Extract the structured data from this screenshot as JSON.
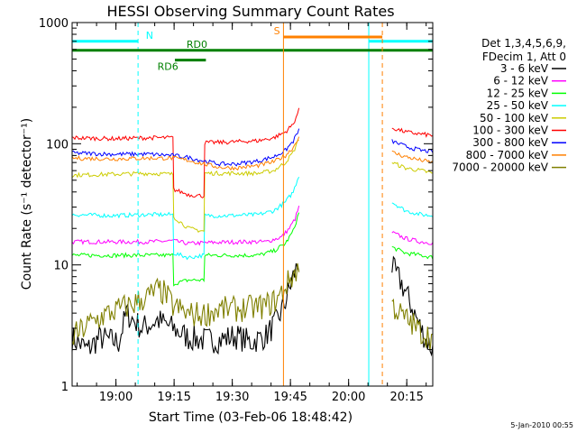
{
  "chart_data": {
    "type": "line",
    "title": "HESSI Observing Summary Count Rates",
    "xlabel": "Start Time (03-Feb-06 18:48:42)",
    "ylabel": "Count Rate (s⁻¹ detector⁻¹)",
    "xlim": [
      0,
      93
    ],
    "ylim": [
      1,
      1000
    ],
    "yscale": "log",
    "grid": false,
    "x_ticks": [
      {
        "label": "19:00",
        "value": 11.3
      },
      {
        "label": "19:15",
        "value": 26.3
      },
      {
        "label": "19:30",
        "value": 41.3
      },
      {
        "label": "19:45",
        "value": 56.3
      },
      {
        "label": "20:00",
        "value": 71.3
      },
      {
        "label": "20:15",
        "value": 86.3
      }
    ],
    "y_ticks": [
      {
        "label": "1",
        "value": 1
      },
      {
        "label": "10",
        "value": 10
      },
      {
        "label": "100",
        "value": 100
      },
      {
        "label": "1000",
        "value": 1000
      }
    ],
    "legend": {
      "placement": "right",
      "header": [
        "Det 1,3,4,5,6,9,",
        "FDecim 1, Att 0"
      ]
    },
    "series": [
      {
        "name": "3 - 6 keV",
        "color": "#000000",
        "points": [
          [
            0,
            2.5
          ],
          [
            4,
            2.0
          ],
          [
            7,
            2.5
          ],
          [
            12,
            2.3
          ],
          [
            14,
            4.0
          ],
          [
            18,
            3.0
          ],
          [
            22,
            3.5
          ],
          [
            26,
            3.0
          ],
          [
            30,
            2.5
          ],
          [
            34,
            2.4
          ],
          [
            38,
            2.4
          ],
          [
            42,
            2.6
          ],
          [
            46,
            2.3
          ],
          [
            50,
            2.6
          ],
          [
            53,
            3.5
          ],
          [
            55,
            5.0
          ],
          [
            57,
            8.0
          ],
          [
            58.5,
            10.5
          ],
          [
            null,
            null
          ],
          [
            82.5,
            9.5
          ],
          [
            85,
            7.0
          ],
          [
            87,
            5.0
          ],
          [
            89,
            3.5
          ],
          [
            91,
            2.5
          ],
          [
            93,
            2.0
          ]
        ]
      },
      {
        "name": "6 - 12 keV",
        "color": "#ff00ff",
        "points": [
          [
            0,
            15.5
          ],
          [
            10,
            15.5
          ],
          [
            20,
            15.5
          ],
          [
            26,
            15.8
          ],
          [
            30,
            15.0
          ],
          [
            36,
            15.3
          ],
          [
            44,
            15.5
          ],
          [
            50,
            15.5
          ],
          [
            54,
            17
          ],
          [
            56,
            20
          ],
          [
            57.5,
            24
          ],
          [
            58.5,
            30
          ],
          [
            null,
            null
          ],
          [
            82.5,
            18.5
          ],
          [
            86,
            16.5
          ],
          [
            90,
            15.5
          ],
          [
            93,
            15.2
          ]
        ]
      },
      {
        "name": "12 - 25 keV",
        "color": "#00ff00",
        "points": [
          [
            0,
            12.0
          ],
          [
            10,
            12.0
          ],
          [
            20,
            12.0
          ],
          [
            26,
            12.0
          ],
          [
            26.2,
            7.0
          ],
          [
            30,
            7.5
          ],
          [
            34,
            7.5
          ],
          [
            34.2,
            12.0
          ],
          [
            40,
            12.0
          ],
          [
            48,
            12.0
          ],
          [
            52,
            13
          ],
          [
            55,
            15
          ],
          [
            57,
            19
          ],
          [
            58.5,
            27
          ],
          [
            null,
            null
          ],
          [
            82.5,
            14
          ],
          [
            86,
            12.5
          ],
          [
            90,
            12.0
          ],
          [
            93,
            11.5
          ]
        ]
      },
      {
        "name": "25 - 50 keV",
        "color": "#00ffff",
        "points": [
          [
            0,
            26
          ],
          [
            10,
            25.5
          ],
          [
            20,
            26
          ],
          [
            26,
            26
          ],
          [
            26.2,
            12.5
          ],
          [
            30,
            11.5
          ],
          [
            34,
            12
          ],
          [
            34.2,
            25.5
          ],
          [
            40,
            25.5
          ],
          [
            48,
            26
          ],
          [
            52,
            28
          ],
          [
            55,
            33
          ],
          [
            57,
            40
          ],
          [
            58.5,
            55
          ],
          [
            null,
            null
          ],
          [
            82.5,
            33
          ],
          [
            86,
            28
          ],
          [
            90,
            26
          ],
          [
            93,
            25.5
          ]
        ]
      },
      {
        "name": "50 - 100 keV",
        "color": "#cccc00",
        "points": [
          [
            0,
            55
          ],
          [
            10,
            56
          ],
          [
            20,
            57
          ],
          [
            26,
            56
          ],
          [
            26.2,
            25
          ],
          [
            30,
            20
          ],
          [
            34,
            19
          ],
          [
            34.2,
            57
          ],
          [
            40,
            57
          ],
          [
            48,
            57
          ],
          [
            52,
            60
          ],
          [
            55,
            70
          ],
          [
            57,
            85
          ],
          [
            58.5,
            110
          ],
          [
            null,
            null
          ],
          [
            82.5,
            70
          ],
          [
            86,
            63
          ],
          [
            90,
            60
          ],
          [
            93,
            57
          ]
        ]
      },
      {
        "name": "100 - 300 keV",
        "color": "#ff0000",
        "points": [
          [
            0,
            112
          ],
          [
            10,
            110
          ],
          [
            20,
            112
          ],
          [
            26,
            112
          ],
          [
            26.2,
            42
          ],
          [
            30,
            38
          ],
          [
            34,
            37
          ],
          [
            34.2,
            102
          ],
          [
            40,
            103
          ],
          [
            48,
            106
          ],
          [
            52,
            112
          ],
          [
            55,
            125
          ],
          [
            57,
            145
          ],
          [
            58.5,
            190
          ],
          [
            null,
            null
          ],
          [
            82.5,
            135
          ],
          [
            86,
            125
          ],
          [
            90,
            120
          ],
          [
            93,
            117
          ]
        ]
      },
      {
        "name": "300 - 800 keV",
        "color": "#0000ff",
        "points": [
          [
            0,
            84
          ],
          [
            10,
            82
          ],
          [
            20,
            82
          ],
          [
            26,
            80
          ],
          [
            30,
            77
          ],
          [
            34,
            72
          ],
          [
            38,
            68
          ],
          [
            42,
            68
          ],
          [
            48,
            72
          ],
          [
            52,
            78
          ],
          [
            55,
            88
          ],
          [
            57,
            105
          ],
          [
            58.5,
            130
          ],
          [
            null,
            null
          ],
          [
            82.5,
            105
          ],
          [
            86,
            95
          ],
          [
            90,
            88
          ],
          [
            93,
            86
          ]
        ]
      },
      {
        "name": "800 - 7000 keV",
        "color": "#ff8000",
        "points": [
          [
            0,
            76
          ],
          [
            10,
            75
          ],
          [
            20,
            76
          ],
          [
            26,
            76
          ],
          [
            30,
            73
          ],
          [
            34,
            68
          ],
          [
            38,
            64
          ],
          [
            42,
            63
          ],
          [
            48,
            66
          ],
          [
            52,
            71
          ],
          [
            55,
            80
          ],
          [
            57,
            93
          ],
          [
            58.5,
            115
          ],
          [
            null,
            null
          ],
          [
            82.5,
            85
          ],
          [
            86,
            78
          ],
          [
            90,
            73
          ],
          [
            93,
            70
          ]
        ]
      },
      {
        "name": "7000 - 20000 keV",
        "color": "#808000",
        "points": [
          [
            0,
            2.5
          ],
          [
            4,
            3.2
          ],
          [
            8,
            3.8
          ],
          [
            12,
            4.3
          ],
          [
            16,
            4.8
          ],
          [
            20,
            5.6
          ],
          [
            22,
            6.2
          ],
          [
            24,
            5.8
          ],
          [
            26,
            4.6
          ],
          [
            30,
            3.9
          ],
          [
            34,
            3.9
          ],
          [
            38,
            4.3
          ],
          [
            42,
            4.3
          ],
          [
            46,
            4.4
          ],
          [
            50,
            4.6
          ],
          [
            53,
            5.2
          ],
          [
            55,
            6.6
          ],
          [
            57,
            8.3
          ],
          [
            58.5,
            9.5
          ],
          [
            null,
            null
          ],
          [
            82.5,
            4.7
          ],
          [
            85,
            3.8
          ],
          [
            88,
            3.2
          ],
          [
            90,
            2.8
          ],
          [
            93,
            2.5
          ]
        ]
      }
    ],
    "flags": [
      {
        "label": "N",
        "color": "#00ffff",
        "value": 700,
        "intervals": [
          [
            0,
            17
          ],
          [
            76.5,
            93
          ]
        ],
        "label_x": 19,
        "boundaries_solid": [
          0,
          76.5
        ],
        "boundaries_dashed": [
          17,
          93
        ]
      },
      {
        "label": "RD0",
        "color": "#008000",
        "value": 590,
        "intervals": [
          [
            0,
            93
          ]
        ],
        "label_x": 29.5
      },
      {
        "label": "RD6",
        "color": "#008000",
        "value": 490,
        "intervals": [
          [
            26.5,
            34.5
          ]
        ],
        "label_x": 22
      },
      {
        "label": "S",
        "color": "#ff8000",
        "value": 760,
        "intervals": [
          [
            54.5,
            80
          ]
        ],
        "label_x": 52,
        "boundaries_solid": [
          54.5
        ],
        "boundaries_dashed": [
          80
        ]
      }
    ]
  },
  "footer": {
    "timestamp": "5-Jan-2010 00:55"
  }
}
